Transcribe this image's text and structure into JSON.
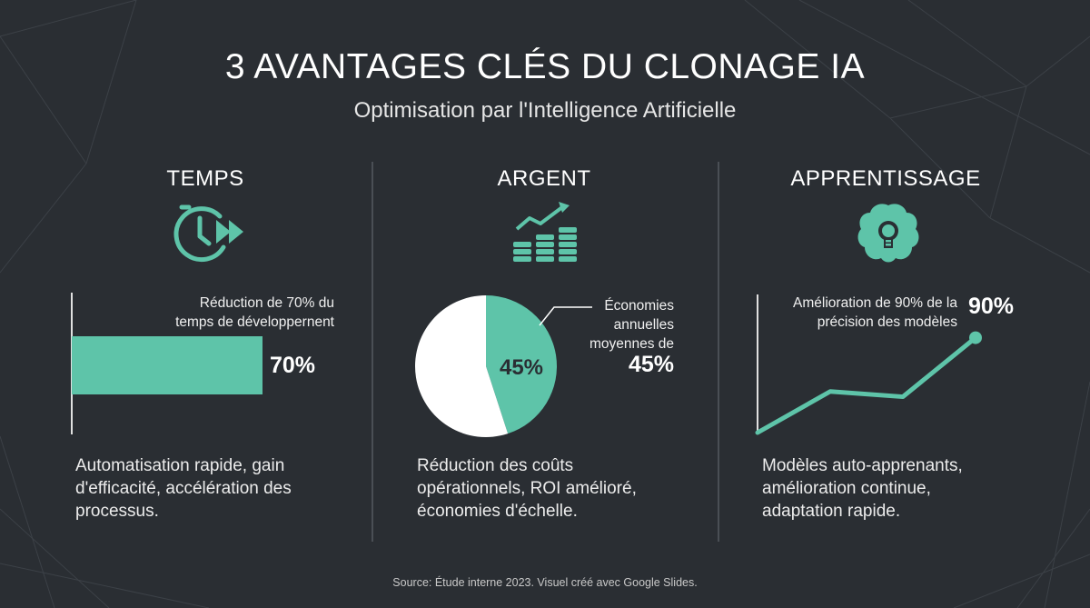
{
  "title": "3 AVANTAGES CLÉS DU CLONAGE IA",
  "subtitle": "Optimisation par l'Intelligence Artificielle",
  "colors": {
    "background": "#2a2e33",
    "accent": "#5ec4a9",
    "pie_rest": "#ffffff",
    "divider": "#4a4f55",
    "text": "#ffffff"
  },
  "columns": [
    {
      "heading": "TEMPS",
      "icon": "clock-fast-forward-icon",
      "label_lines": [
        "Réduction de 70% du",
        "temps de développernent"
      ],
      "value_label": "70%",
      "description_lines": [
        "Automatisation rapide, gain",
        "d'efficacité, accélération des",
        "processus."
      ]
    },
    {
      "heading": "ARGENT",
      "icon": "coins-growth-icon",
      "label_lines": [
        "Économies",
        "annuelles",
        "moyennes de"
      ],
      "value_label": "45%",
      "slice_label": "45%",
      "description_lines": [
        "Réduction des coûts",
        "opérationnels, ROI amélioré,",
        "économies d'échelle."
      ]
    },
    {
      "heading": "APPRENTISSAGE",
      "icon": "brain-lightbulb-icon",
      "label_lines": [
        "Amélioration de 90% de la",
        "précision des modèles"
      ],
      "value_label": "90%",
      "description_lines": [
        "Modèles auto-apprenants,",
        "amélioration continue,",
        "adaptation rapide."
      ]
    }
  ],
  "chart_data": [
    {
      "type": "bar",
      "orientation": "horizontal",
      "values": [
        70
      ],
      "xlim": [
        0,
        100
      ]
    },
    {
      "type": "pie",
      "values": [
        45,
        55
      ]
    },
    {
      "type": "line",
      "x": [
        0,
        1,
        2,
        3
      ],
      "values": [
        0,
        39,
        34,
        90
      ],
      "ylim": [
        0,
        100
      ]
    }
  ],
  "source": "Source: Étude interne 2023. Visuel créé avec Google Slides."
}
